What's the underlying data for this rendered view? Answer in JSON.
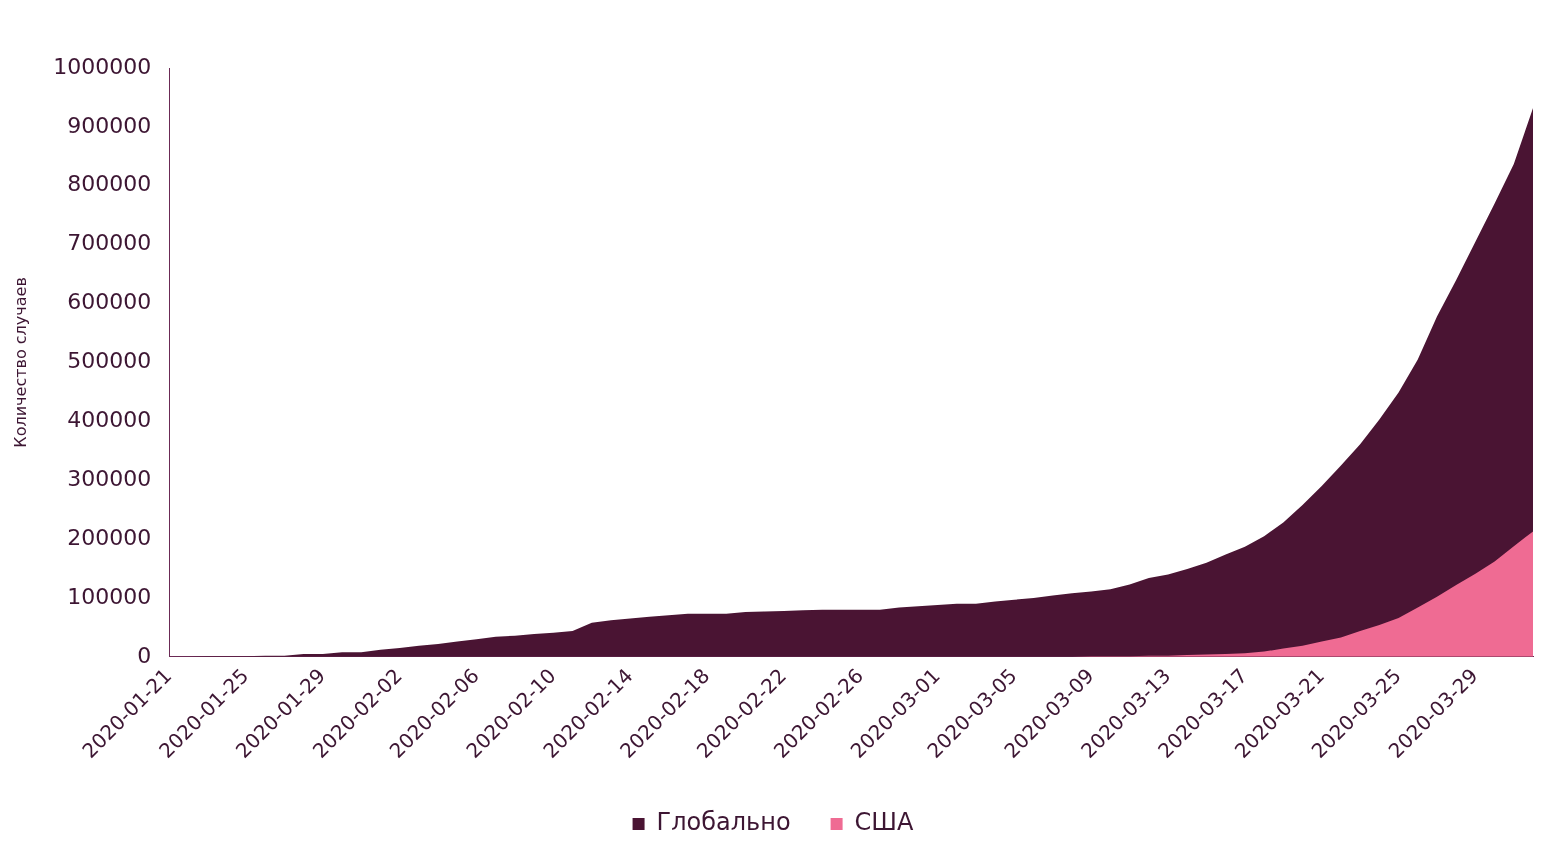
{
  "chart_data": {
    "type": "area",
    "ylabel": "Количество случаев",
    "categories": [
      "2020-01-21",
      null,
      null,
      null,
      "2020-01-25",
      null,
      null,
      null,
      "2020-01-29",
      null,
      null,
      null,
      "2020-02-02",
      null,
      null,
      null,
      "2020-02-06",
      null,
      null,
      null,
      "2020-02-10",
      null,
      null,
      null,
      "2020-02-14",
      null,
      null,
      null,
      "2020-02-18",
      null,
      null,
      null,
      "2020-02-22",
      null,
      null,
      null,
      "2020-02-26",
      null,
      null,
      null,
      "2020-03-01",
      null,
      null,
      null,
      "2020-03-05",
      null,
      null,
      null,
      "2020-03-09",
      null,
      null,
      null,
      "2020-03-13",
      null,
      null,
      null,
      "2020-03-17",
      null,
      null,
      null,
      "2020-03-21",
      null,
      null,
      null,
      "2020-03-25",
      null,
      null,
      null,
      "2020-03-29",
      null,
      null,
      null
    ],
    "series": [
      {
        "name": "Глобально",
        "color": "#4a1433",
        "values": [
          0,
          0,
          1000,
          1000,
          1000,
          2000,
          2000,
          5000,
          5000,
          8000,
          8000,
          12000,
          15000,
          19000,
          22000,
          26000,
          30000,
          34000,
          36000,
          39000,
          41000,
          44000,
          58000,
          62000,
          65000,
          68000,
          70500,
          73000,
          73000,
          73000,
          76000,
          77000,
          78000,
          79000,
          80000,
          80000,
          80000,
          80000,
          84000,
          86000,
          88000,
          90000,
          90000,
          94000,
          97000,
          100000,
          104000,
          108000,
          111000,
          115000,
          123000,
          134000,
          140000,
          149000,
          160000,
          174000,
          187000,
          205000,
          228000,
          258000,
          290000,
          325000,
          361000,
          403000,
          449000,
          505000,
          578000,
          640000,
          705000,
          770000,
          837000,
          932000
        ]
      },
      {
        "name": "США",
        "color": "#ef6b93",
        "values": [
          0,
          0,
          0,
          0,
          0,
          0,
          0,
          0,
          0,
          0,
          0,
          0,
          0,
          0,
          0,
          0,
          0,
          0,
          0,
          0,
          0,
          0,
          0,
          0,
          0,
          0,
          0,
          0,
          0,
          0,
          0,
          0,
          0,
          0,
          0,
          0,
          0,
          0,
          0,
          0,
          0,
          0,
          0,
          0,
          0,
          0,
          0,
          0,
          1000,
          1000,
          1000,
          2000,
          2000,
          3000,
          4000,
          5000,
          6000,
          9000,
          14000,
          19000,
          26000,
          33000,
          44000,
          54000,
          66000,
          84000,
          102000,
          122000,
          141000,
          162000,
          188000,
          213000
        ]
      }
    ],
    "ylim": [
      0,
      1000000
    ],
    "yticks": [
      0,
      100000,
      200000,
      300000,
      400000,
      500000,
      600000,
      700000,
      800000,
      900000,
      1000000
    ],
    "grid": false,
    "legend": "bottom"
  }
}
